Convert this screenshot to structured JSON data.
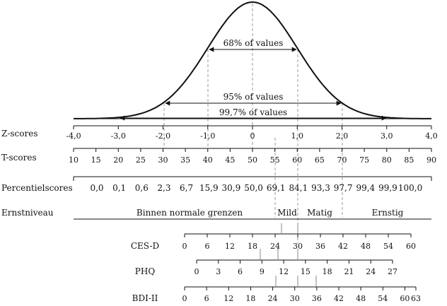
{
  "curve": {
    "labels": {
      "p68": "68% of values",
      "p95": "95% of values",
      "p997": "99,7% of values"
    }
  },
  "rows": {
    "z": {
      "label": "Z-scores"
    },
    "t": {
      "label": "T-scores"
    },
    "pct": {
      "label": "Percentielscores"
    },
    "sev": {
      "label": "Ernstniveau"
    }
  },
  "z_ticks": [
    "-4,0",
    "-3,0",
    "-2,0",
    "-1,0",
    "0",
    "1,0",
    "2,0",
    "3,0",
    "4,0"
  ],
  "t_ticks": [
    "10",
    "15",
    "20",
    "25",
    "30",
    "35",
    "40",
    "45",
    "50",
    "55",
    "60",
    "65",
    "70",
    "75",
    "80",
    "85",
    "90"
  ],
  "pct_values": [
    "0,0",
    "0,1",
    "0,6",
    "2,3",
    "6,7",
    "15,9",
    "30,9",
    "50,0",
    "69,1",
    "84,1",
    "93,3",
    "97,7",
    "99,4",
    "99,9",
    "100,0"
  ],
  "severity": {
    "normal": "Binnen normale grenzen",
    "mild": "Mild",
    "matig": "Matig",
    "ernstig": "Ernstig"
  },
  "scales": [
    {
      "name": "CES-D",
      "ticks": [
        "0",
        "6",
        "12",
        "18",
        "24",
        "30",
        "36",
        "42",
        "48",
        "54",
        "60"
      ]
    },
    {
      "name": "PHQ",
      "ticks": [
        "0",
        "3",
        "6",
        "9",
        "12",
        "15",
        "18",
        "21",
        "24",
        "27"
      ]
    },
    {
      "name": "BDI-II",
      "ticks": [
        "0",
        "6",
        "12",
        "18",
        "24",
        "30",
        "36",
        "42",
        "48",
        "54",
        "60",
        "63"
      ]
    }
  ]
}
